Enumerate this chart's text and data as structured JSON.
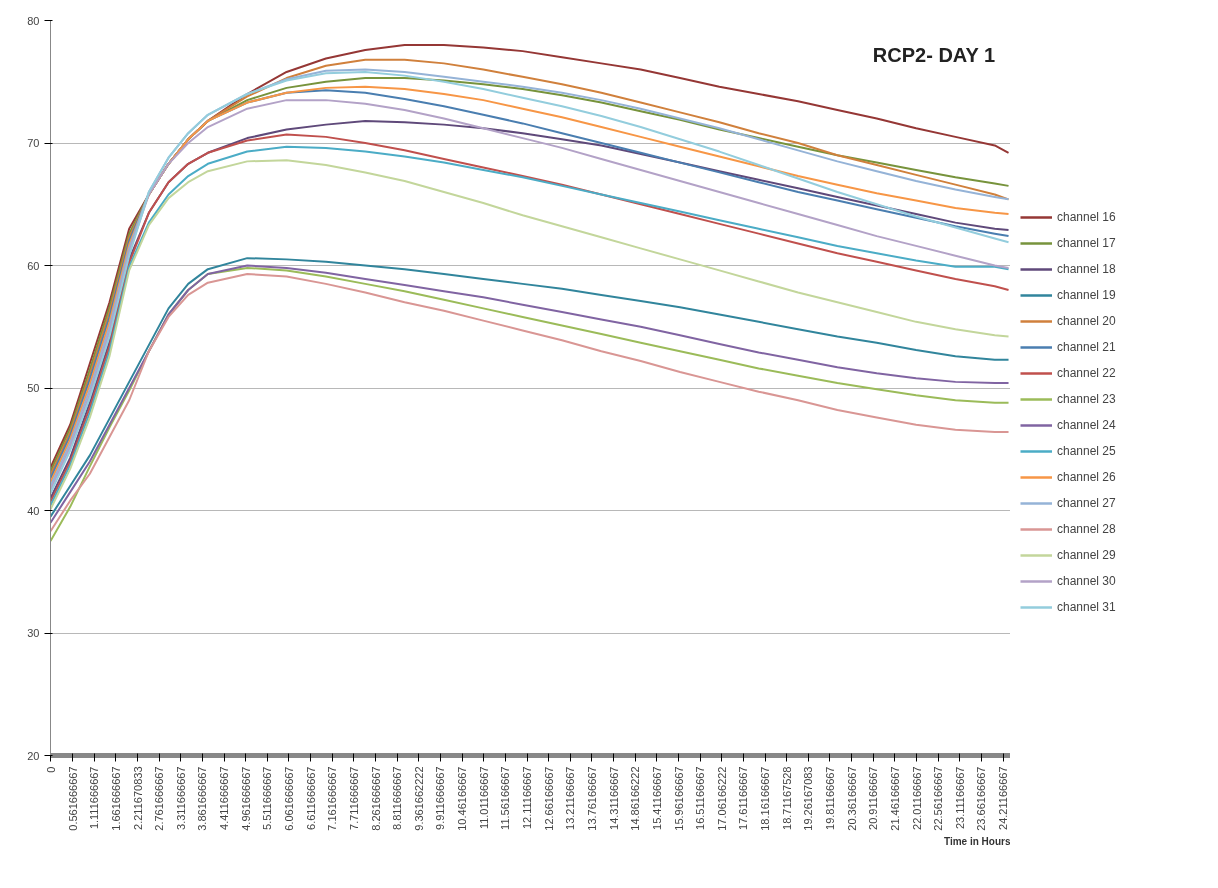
{
  "chart_data": {
    "type": "line",
    "title": "RCP2- DAY 1",
    "xlabel": "Time in Hours",
    "x": [
      0,
      0.5,
      1,
      1.5,
      2,
      2.5,
      3,
      3.5,
      4,
      5,
      6,
      7,
      8,
      9,
      10,
      11,
      12,
      13,
      14,
      15,
      16,
      17,
      18,
      19,
      20,
      21,
      22,
      23,
      24,
      24.35
    ],
    "xlim": [
      0,
      24.4
    ],
    "xticks": [
      0,
      0.561666667,
      1.111666667,
      1.661666667,
      2.211670833,
      2.761666667,
      3.311666667,
      3.861666667,
      4.411666667,
      4.961666667,
      5.511666667,
      6.061666667,
      6.611666667,
      7.161666667,
      7.711666667,
      8.261666667,
      8.811666667,
      9.361662222,
      9.911666667,
      10.46166667,
      11.01166667,
      11.56166667,
      12.11166667,
      12.66166667,
      13.21166667,
      13.76166667,
      14.31166667,
      14.86166222,
      15.41166667,
      15.96166667,
      16.51166667,
      17.06166222,
      17.61166667,
      18.16166667,
      18.71167528,
      19.26167083,
      19.81166667,
      20.36166667,
      20.91166667,
      21.46166667,
      22.01166667,
      22.56166667,
      23.11166667,
      23.66166667,
      24.21166667
    ],
    "ylim": [
      20,
      80
    ],
    "yticks": [
      20,
      30,
      40,
      50,
      60,
      70,
      80
    ],
    "grid": "y",
    "legend": "right",
    "line_style": "solid",
    "marker": "none",
    "series": [
      {
        "name": "channel 16",
        "color": "#953735",
        "values": [
          43.5,
          47,
          52,
          57,
          63,
          65.8,
          68.3,
          70.3,
          71.8,
          74,
          75.8,
          76.9,
          77.6,
          78,
          78,
          77.8,
          77.5,
          77,
          76.5,
          76,
          75.3,
          74.6,
          74,
          73.4,
          72.7,
          72,
          71.2,
          70.5,
          69.8,
          69.2
        ]
      },
      {
        "name": "channel 17",
        "color": "#77933c",
        "values": [
          43.2,
          46.7,
          51.5,
          56.6,
          62.6,
          65.8,
          68.3,
          70.3,
          71.8,
          73.5,
          74.5,
          75,
          75.3,
          75.3,
          75.1,
          74.8,
          74.4,
          73.9,
          73.3,
          72.6,
          71.9,
          71.1,
          70.4,
          69.7,
          69,
          68.4,
          67.8,
          67.2,
          66.7,
          66.5
        ]
      },
      {
        "name": "channel 18",
        "color": "#5f497a",
        "values": [
          41,
          44.3,
          48.8,
          53.8,
          60.5,
          64.3,
          66.8,
          68.3,
          69.2,
          70.4,
          71.1,
          71.5,
          71.8,
          71.7,
          71.5,
          71.2,
          70.8,
          70.3,
          69.8,
          69.1,
          68.4,
          67.7,
          67,
          66.3,
          65.6,
          64.9,
          64.2,
          63.5,
          63,
          62.9
        ]
      },
      {
        "name": "channel 19",
        "color": "#31859c",
        "values": [
          39.5,
          42,
          44.5,
          47.5,
          50.5,
          53.5,
          56.5,
          58.5,
          59.7,
          60.6,
          60.5,
          60.3,
          60,
          59.7,
          59.3,
          58.9,
          58.5,
          58.1,
          57.6,
          57.1,
          56.6,
          56,
          55.4,
          54.8,
          54.2,
          53.7,
          53.1,
          52.6,
          52.3,
          52.3
        ]
      },
      {
        "name": "channel 20",
        "color": "#d0803c",
        "values": [
          42.9,
          46.4,
          51.1,
          56.2,
          62.3,
          65.8,
          68.3,
          70.3,
          71.8,
          73.8,
          75.3,
          76.3,
          76.8,
          76.8,
          76.5,
          76,
          75.4,
          74.8,
          74.1,
          73.3,
          72.5,
          71.7,
          70.8,
          70,
          69,
          68.2,
          67.4,
          66.6,
          65.8,
          65.4
        ]
      },
      {
        "name": "channel 21",
        "color": "#4a7eb0",
        "values": [
          42.6,
          46.1,
          50.7,
          55.8,
          62,
          65.8,
          68.3,
          70.3,
          71.8,
          73.3,
          74.1,
          74.3,
          74.1,
          73.6,
          73,
          72.3,
          71.6,
          70.8,
          70,
          69.2,
          68.4,
          67.6,
          66.8,
          66,
          65.3,
          64.6,
          63.9,
          63.2,
          62.6,
          62.4
        ]
      },
      {
        "name": "channel 22",
        "color": "#c0504d",
        "values": [
          40.7,
          44,
          48.4,
          53.4,
          60.2,
          64.3,
          66.8,
          68.3,
          69.2,
          70.2,
          70.7,
          70.5,
          70,
          69.4,
          68.7,
          68,
          67.3,
          66.6,
          65.8,
          65,
          64.2,
          63.4,
          62.6,
          61.8,
          61,
          60.3,
          59.6,
          58.9,
          58.3,
          58
        ]
      },
      {
        "name": "channel 23",
        "color": "#9bbb59",
        "values": [
          37.5,
          40.3,
          43.6,
          46.8,
          49.8,
          53,
          56,
          58,
          59.3,
          59.8,
          59.6,
          59.1,
          58.5,
          57.9,
          57.2,
          56.5,
          55.8,
          55.1,
          54.4,
          53.7,
          53,
          52.3,
          51.6,
          51,
          50.4,
          49.9,
          49.4,
          49,
          48.8,
          48.8
        ]
      },
      {
        "name": "channel 24",
        "color": "#8064a2",
        "values": [
          39,
          41.5,
          44,
          47,
          50,
          53,
          56,
          58,
          59.3,
          60,
          59.8,
          59.4,
          58.9,
          58.4,
          57.9,
          57.4,
          56.8,
          56.2,
          55.6,
          55,
          54.3,
          53.6,
          52.9,
          52.3,
          51.7,
          51.2,
          50.8,
          50.5,
          50.4,
          50.4
        ]
      },
      {
        "name": "channel 25",
        "color": "#4bacc6",
        "values": [
          40.4,
          43.7,
          48,
          53,
          59.9,
          63.5,
          65.8,
          67.3,
          68.3,
          69.3,
          69.7,
          69.6,
          69.3,
          68.9,
          68.4,
          67.8,
          67.2,
          66.5,
          65.8,
          65.1,
          64.4,
          63.7,
          63,
          62.3,
          61.6,
          61,
          60.4,
          59.9,
          59.9,
          59.7
        ]
      },
      {
        "name": "channel 26",
        "color": "#f79646",
        "values": [
          42.3,
          45.8,
          50.3,
          55.4,
          61.7,
          65.8,
          68.3,
          70.3,
          71.8,
          73.3,
          74.1,
          74.5,
          74.6,
          74.4,
          74,
          73.5,
          72.8,
          72.1,
          71.3,
          70.5,
          69.7,
          68.9,
          68.1,
          67.3,
          66.6,
          65.9,
          65.3,
          64.7,
          64.3,
          64.2
        ]
      },
      {
        "name": "channel 27",
        "color": "#95b3d7",
        "values": [
          42,
          45.5,
          49.9,
          55,
          61.4,
          66,
          68.8,
          70.8,
          72.3,
          74,
          75.2,
          75.9,
          76,
          75.8,
          75.4,
          75,
          74.6,
          74.1,
          73.5,
          72.8,
          72,
          71.2,
          70.3,
          69.4,
          68.5,
          67.7,
          66.9,
          66.2,
          65.6,
          65.4
        ]
      },
      {
        "name": "channel 28",
        "color": "#d99694",
        "values": [
          38.3,
          40.8,
          43,
          46,
          49,
          53,
          55.8,
          57.6,
          58.6,
          59.3,
          59.1,
          58.5,
          57.8,
          57,
          56.3,
          55.5,
          54.7,
          53.9,
          53,
          52.2,
          51.3,
          50.5,
          49.7,
          49,
          48.2,
          47.6,
          47,
          46.6,
          46.4,
          46.4
        ]
      },
      {
        "name": "channel 29",
        "color": "#c3d69b",
        "values": [
          40.1,
          43.4,
          47.6,
          52.6,
          59.6,
          63.3,
          65.5,
          66.8,
          67.7,
          68.5,
          68.6,
          68.2,
          67.6,
          66.9,
          66,
          65.1,
          64.1,
          63.2,
          62.3,
          61.4,
          60.5,
          59.6,
          58.7,
          57.8,
          57,
          56.2,
          55.4,
          54.8,
          54.3,
          54.2
        ]
      },
      {
        "name": "channel 30",
        "color": "#b3a2c7",
        "values": [
          41.7,
          45.2,
          49.5,
          54.6,
          61.1,
          65.8,
          68.3,
          70,
          71.3,
          72.8,
          73.5,
          73.5,
          73.2,
          72.7,
          72,
          71.2,
          70.4,
          69.6,
          68.7,
          67.8,
          66.9,
          66,
          65.1,
          64.2,
          63.3,
          62.4,
          61.6,
          60.8,
          60,
          59.8
        ]
      },
      {
        "name": "channel 31",
        "color": "#93cddd",
        "values": [
          41.4,
          44.9,
          49.2,
          54.2,
          60.8,
          66,
          68.8,
          70.8,
          72.3,
          74,
          75.1,
          75.7,
          75.8,
          75.5,
          75,
          74.4,
          73.7,
          73,
          72.2,
          71.3,
          70.3,
          69.3,
          68.2,
          67.1,
          66,
          65,
          64,
          63.1,
          62.2,
          61.9
        ]
      }
    ]
  }
}
